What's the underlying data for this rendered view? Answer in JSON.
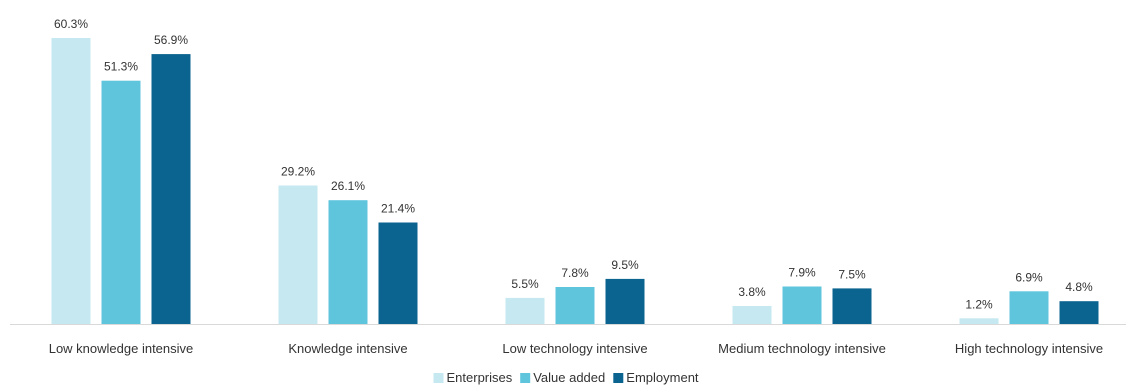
{
  "chart_data": {
    "type": "bar",
    "categories": [
      "Low knowledge intensive",
      "Knowledge intensive",
      "Low technology intensive",
      "Medium technology intensive",
      "High technology intensive"
    ],
    "series": [
      {
        "name": "Enterprises",
        "color": "#c5e8f1",
        "values": [
          60.3,
          29.2,
          5.5,
          3.8,
          1.2
        ]
      },
      {
        "name": "Value added",
        "color": "#5fc5dd",
        "values": [
          51.3,
          26.1,
          7.8,
          7.9,
          6.9
        ]
      },
      {
        "name": "Employment",
        "color": "#0b6390",
        "values": [
          56.9,
          21.4,
          9.5,
          7.5,
          4.8
        ]
      }
    ],
    "value_suffix": "%",
    "ylim": [
      0,
      60.3
    ],
    "grid": false,
    "legend_position": "bottom-center"
  }
}
